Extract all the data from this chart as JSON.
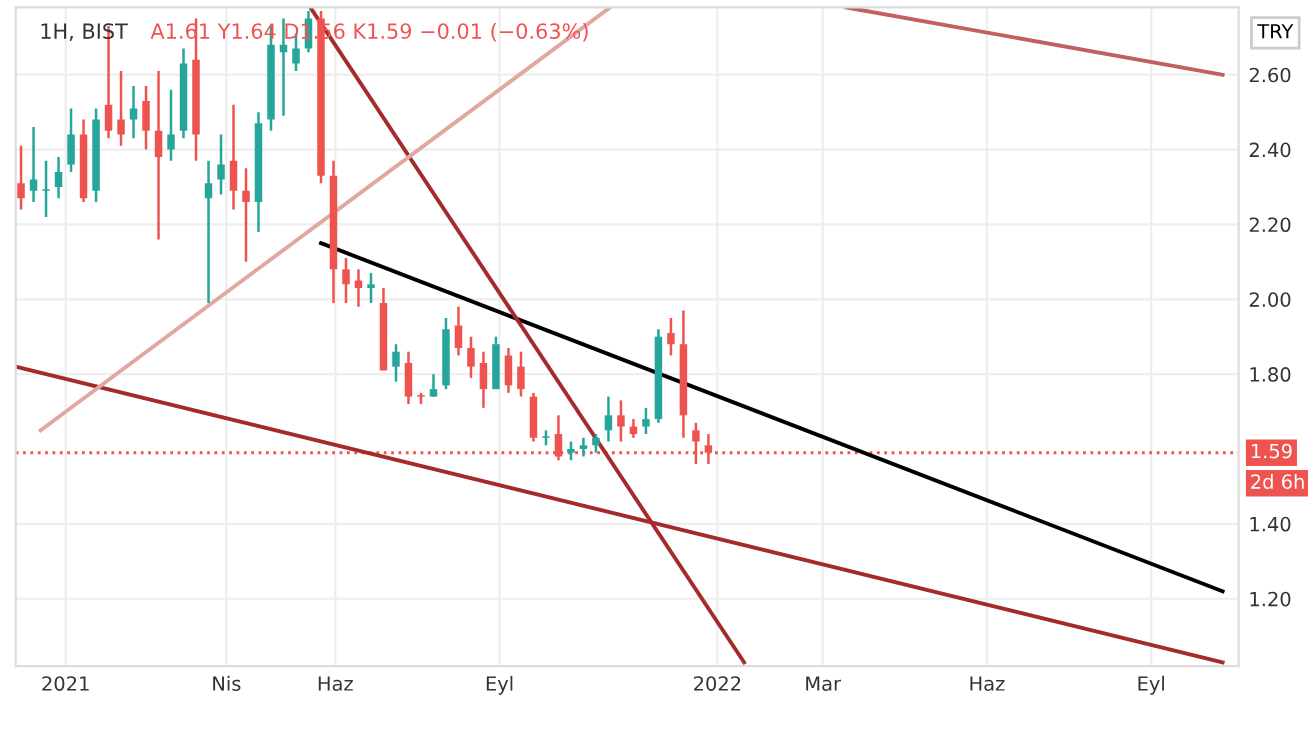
{
  "chart_data": {
    "type": "candlestick",
    "title": "1H, BIST",
    "subtitle": "A1.61 Y1.64 D1.56 K1.59 −0.01 (−0.63%)",
    "ylabel": "TRY",
    "x": [
      "2020-12-07",
      "2020-12-14",
      "2020-12-21",
      "2020-12-28",
      "2021-01-04",
      "2021-01-11",
      "2021-01-18",
      "2021-01-25",
      "2021-02-01",
      "2021-02-08",
      "2021-02-15",
      "2021-02-22",
      "2021-03-01",
      "2021-03-08",
      "2021-03-15",
      "2021-03-22",
      "2021-03-29",
      "2021-04-05",
      "2021-04-12",
      "2021-04-19",
      "2021-04-26",
      "2021-05-03",
      "2021-05-10",
      "2021-05-17",
      "2021-05-24",
      "2021-05-31",
      "2021-06-07",
      "2021-06-14",
      "2021-06-21",
      "2021-06-28",
      "2021-07-05",
      "2021-07-12",
      "2021-07-19",
      "2021-07-26",
      "2021-08-02",
      "2021-08-09",
      "2021-08-16",
      "2021-08-23",
      "2021-08-30",
      "2021-09-06",
      "2021-09-13",
      "2021-09-20",
      "2021-09-27",
      "2021-10-04",
      "2021-10-11",
      "2021-10-18",
      "2021-10-25",
      "2021-11-01",
      "2021-11-08",
      "2021-11-15",
      "2021-11-22",
      "2021-11-29",
      "2021-12-06",
      "2021-12-13",
      "2021-12-20",
      "2021-12-27"
    ],
    "ohlc": [
      [
        2.31,
        2.41,
        2.24,
        2.27
      ],
      [
        2.29,
        2.46,
        2.26,
        2.32
      ],
      [
        2.29,
        2.37,
        2.22,
        2.29
      ],
      [
        2.3,
        2.38,
        2.27,
        2.34
      ],
      [
        2.36,
        2.51,
        2.34,
        2.44
      ],
      [
        2.44,
        2.48,
        2.26,
        2.27
      ],
      [
        2.29,
        2.51,
        2.26,
        2.48
      ],
      [
        2.52,
        2.73,
        2.43,
        2.45
      ],
      [
        2.48,
        2.61,
        2.41,
        2.44
      ],
      [
        2.48,
        2.57,
        2.43,
        2.51
      ],
      [
        2.53,
        2.57,
        2.4,
        2.45
      ],
      [
        2.45,
        2.61,
        2.16,
        2.38
      ],
      [
        2.4,
        2.56,
        2.37,
        2.44
      ],
      [
        2.45,
        2.67,
        2.43,
        2.63
      ],
      [
        2.64,
        2.75,
        2.37,
        2.44
      ],
      [
        2.27,
        2.37,
        1.99,
        2.31
      ],
      [
        2.32,
        2.44,
        2.28,
        2.36
      ],
      [
        2.37,
        2.52,
        2.24,
        2.29
      ],
      [
        2.29,
        2.35,
        2.1,
        2.26
      ],
      [
        2.26,
        2.5,
        2.18,
        2.47
      ],
      [
        2.48,
        2.73,
        2.45,
        2.68
      ],
      [
        2.66,
        2.75,
        2.49,
        2.68
      ],
      [
        2.63,
        2.71,
        2.61,
        2.67
      ],
      [
        2.67,
        2.77,
        2.66,
        2.75
      ],
      [
        2.75,
        2.77,
        2.31,
        2.33
      ],
      [
        2.33,
        2.37,
        1.99,
        2.08
      ],
      [
        2.08,
        2.11,
        1.99,
        2.04
      ],
      [
        2.05,
        2.08,
        1.98,
        2.03
      ],
      [
        2.03,
        2.07,
        1.99,
        2.04
      ],
      [
        1.99,
        2.03,
        1.81,
        1.81
      ],
      [
        1.82,
        1.88,
        1.78,
        1.86
      ],
      [
        1.83,
        1.86,
        1.72,
        1.74
      ],
      [
        1.74,
        1.75,
        1.72,
        1.74
      ],
      [
        1.74,
        1.8,
        1.74,
        1.76
      ],
      [
        1.77,
        1.95,
        1.76,
        1.92
      ],
      [
        1.93,
        1.98,
        1.85,
        1.87
      ],
      [
        1.87,
        1.9,
        1.79,
        1.82
      ],
      [
        1.83,
        1.86,
        1.71,
        1.76
      ],
      [
        1.76,
        1.9,
        1.76,
        1.88
      ],
      [
        1.85,
        1.87,
        1.75,
        1.77
      ],
      [
        1.82,
        1.86,
        1.74,
        1.76
      ],
      [
        1.74,
        1.75,
        1.62,
        1.63
      ],
      [
        1.63,
        1.65,
        1.61,
        1.63
      ],
      [
        1.64,
        1.69,
        1.57,
        1.58
      ],
      [
        1.59,
        1.62,
        1.57,
        1.6
      ],
      [
        1.6,
        1.63,
        1.58,
        1.61
      ],
      [
        1.61,
        1.64,
        1.59,
        1.63
      ],
      [
        1.65,
        1.74,
        1.62,
        1.69
      ],
      [
        1.69,
        1.73,
        1.62,
        1.66
      ],
      [
        1.66,
        1.68,
        1.63,
        1.64
      ],
      [
        1.66,
        1.71,
        1.64,
        1.68
      ],
      [
        1.68,
        1.92,
        1.67,
        1.9
      ],
      [
        1.91,
        1.95,
        1.85,
        1.88
      ],
      [
        1.88,
        1.97,
        1.63,
        1.69
      ],
      [
        1.65,
        1.67,
        1.56,
        1.62
      ],
      [
        1.61,
        1.64,
        1.56,
        1.59
      ]
    ],
    "colors": [
      "#ef5350",
      "#26a69a",
      "#26a69a",
      "#26a69a",
      "#26a69a",
      "#ef5350",
      "#26a69a",
      "#ef5350",
      "#ef5350",
      "#26a69a",
      "#ef5350",
      "#ef5350",
      "#26a69a",
      "#26a69a",
      "#ef5350",
      "#26a69a",
      "#26a69a",
      "#ef5350",
      "#ef5350",
      "#26a69a",
      "#26a69a",
      "#26a69a",
      "#26a69a",
      "#26a69a",
      "#ef5350",
      "#ef5350",
      "#ef5350",
      "#ef5350",
      "#26a69a",
      "#ef5350",
      "#26a69a",
      "#ef5350",
      "#ef5350",
      "#26a69a",
      "#26a69a",
      "#ef5350",
      "#ef5350",
      "#ef5350",
      "#26a69a",
      "#ef5350",
      "#ef5350",
      "#ef5350",
      "#26a69a",
      "#ef5350",
      "#26a69a",
      "#26a69a",
      "#26a69a",
      "#26a69a",
      "#ef5350",
      "#ef5350",
      "#26a69a",
      "#26a69a",
      "#ef5350",
      "#ef5350",
      "#ef5350",
      "#ef5350"
    ],
    "series": [
      {
        "type": "line",
        "color": "#000000",
        "x": [
          "2021-05-24",
          "2022-10-11"
        ],
        "values": [
          2.15,
          1.22
        ]
      },
      {
        "type": "line",
        "color": "#a52a2a",
        "x": [
          "2021-05-18",
          "2022-01-16"
        ],
        "values": [
          2.78,
          1.03
        ]
      },
      {
        "type": "line",
        "color": "#a52a2a",
        "x": [
          "2020-12-04",
          "2022-10-11"
        ],
        "values": [
          1.82,
          1.03
        ]
      },
      {
        "type": "line",
        "color": "#e0a8a0",
        "x": [
          "2020-12-18",
          "2021-11-02"
        ],
        "values": [
          1.65,
          2.78
        ]
      },
      {
        "type": "line",
        "color": "#c06060",
        "x": [
          "2022-03-14",
          "2022-10-11"
        ],
        "values": [
          2.78,
          2.6
        ]
      }
    ],
    "ref_lines": [
      {
        "axis": "y",
        "value": 1.59,
        "label": "1.59",
        "color": "#ef5350",
        "line_style": "dotted"
      }
    ],
    "annotations": [
      "2d 6h"
    ],
    "xlim": [
      "2020-12-04",
      "2022-10-20"
    ],
    "ylim": [
      1.02,
      2.78
    ],
    "xticks": [
      {
        "value": "2021-01-01",
        "label": "2021"
      },
      {
        "value": "2021-04-01",
        "label": "Nis"
      },
      {
        "value": "2021-06-01",
        "label": "Haz"
      },
      {
        "value": "2021-09-01",
        "label": "Eyl"
      },
      {
        "value": "2022-01-01",
        "label": "2022"
      },
      {
        "value": "2022-03-01",
        "label": "Mar"
      },
      {
        "value": "2022-06-01",
        "label": "Haz"
      },
      {
        "value": "2022-09-01",
        "label": "Eyl"
      }
    ],
    "yticks": [
      {
        "value": 1.2,
        "label": "1.20"
      },
      {
        "value": 1.4,
        "label": "1.40"
      },
      {
        "value": 1.8,
        "label": "1.80"
      },
      {
        "value": 2.0,
        "label": "2.00"
      },
      {
        "value": 2.2,
        "label": "2.20"
      },
      {
        "value": 2.4,
        "label": "2.40"
      },
      {
        "value": 2.6,
        "label": "2.60"
      }
    ],
    "grid": true
  }
}
